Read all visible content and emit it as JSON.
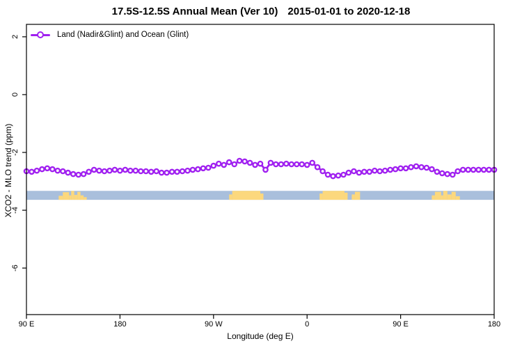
{
  "title": {
    "range": "17.5S-12.5S Annual Mean (Ver 10)",
    "dates": "2015-01-01 to 2020-12-18"
  },
  "legend": {
    "label": "Land (Nadir&Glint) and Ocean (Glint)"
  },
  "axes": {
    "x_label": "Longitude (deg E)",
    "y_label": "XCO2 - MLO trend (ppm)",
    "x_ticks": [
      {
        "label": "90 E",
        "lon": 90
      },
      {
        "label": "180",
        "lon": 180
      },
      {
        "label": "90 W",
        "lon": 270
      },
      {
        "label": "0",
        "lon": 360
      },
      {
        "label": "90 E",
        "lon": 450
      },
      {
        "label": "180",
        "lon": 540
      }
    ],
    "y_ticks": [
      2,
      0,
      -2,
      -4,
      -6
    ],
    "xlim_lon": [
      90,
      540
    ],
    "ylim": [
      -7.61,
      2.43
    ]
  },
  "colors": {
    "line": "#A020F0",
    "marker_fill": "#ffffff",
    "ocean": "#a9bfdc",
    "land": "#fcd87d",
    "axis": "#000000"
  },
  "chart_data": {
    "type": "line",
    "title": "17.5S-12.5S Annual Mean (Ver 10)  2015-01-01 to 2020-12-18",
    "xlabel": "Longitude (deg E)",
    "ylabel": "XCO2 - MLO trend (ppm)",
    "legend_position": "top-left",
    "grid": false,
    "x_axis_note": "longitude increases eastward from 90E, wrapping through 180, 90W, 0, 90E to 180",
    "series": [
      {
        "name": "Land (Nadir&Glint) and Ocean (Glint)",
        "marker": "open-circle",
        "lon_start": 90,
        "lon_step": 5,
        "values": [
          -2.65,
          -2.67,
          -2.63,
          -2.58,
          -2.55,
          -2.58,
          -2.63,
          -2.65,
          -2.7,
          -2.75,
          -2.77,
          -2.75,
          -2.67,
          -2.6,
          -2.63,
          -2.65,
          -2.63,
          -2.6,
          -2.63,
          -2.6,
          -2.63,
          -2.63,
          -2.65,
          -2.65,
          -2.67,
          -2.65,
          -2.7,
          -2.7,
          -2.67,
          -2.67,
          -2.65,
          -2.63,
          -2.6,
          -2.58,
          -2.55,
          -2.53,
          -2.46,
          -2.39,
          -2.43,
          -2.34,
          -2.41,
          -2.29,
          -2.31,
          -2.36,
          -2.43,
          -2.39,
          -2.6,
          -2.36,
          -2.41,
          -2.41,
          -2.39,
          -2.41,
          -2.41,
          -2.41,
          -2.43,
          -2.36,
          -2.51,
          -2.65,
          -2.77,
          -2.82,
          -2.8,
          -2.77,
          -2.7,
          -2.65,
          -2.7,
          -2.67,
          -2.67,
          -2.63,
          -2.65,
          -2.63,
          -2.6,
          -2.58,
          -2.55,
          -2.55,
          -2.51,
          -2.48,
          -2.51,
          -2.53,
          -2.58,
          -2.67,
          -2.72,
          -2.75,
          -2.77,
          -2.65,
          -2.6,
          -2.6,
          -2.6,
          -2.6,
          -2.6,
          -2.6,
          -2.6
        ]
      }
    ],
    "surface_band": {
      "v_top": -3.33,
      "v_bottom": -3.64,
      "land_segments": [
        {
          "name": "australia-west-end",
          "parts": [
            [
              121,
              125,
              0.45
            ],
            [
              125,
              131,
              0.85
            ],
            [
              131,
              133,
              0.5
            ],
            [
              133,
              136,
              1
            ],
            [
              136,
              139,
              0.55
            ],
            [
              139,
              142,
              0.9
            ],
            [
              142,
              145,
              0.5
            ],
            [
              145,
              148,
              0.3
            ]
          ]
        },
        {
          "name": "south-america",
          "parts": [
            [
              285,
              288,
              0.6
            ],
            [
              288,
              315,
              1
            ],
            [
              315,
              318,
              0.7
            ]
          ]
        },
        {
          "name": "africa",
          "parts": [
            [
              372,
              375,
              0.7
            ],
            [
              375,
              396,
              1
            ],
            [
              396,
              399,
              0.8
            ]
          ]
        },
        {
          "name": "madagascar",
          "parts": [
            [
              403,
              406,
              0.6
            ],
            [
              406,
              411,
              0.9
            ]
          ]
        },
        {
          "name": "australia-east-end",
          "parts": [
            [
              480,
              483,
              0.5
            ],
            [
              483,
              489,
              0.9
            ],
            [
              489,
              491,
              0.5
            ],
            [
              491,
              495,
              1
            ],
            [
              495,
              499,
              0.6
            ],
            [
              499,
              503,
              0.9
            ],
            [
              503,
              507,
              0.4
            ]
          ]
        }
      ]
    }
  }
}
